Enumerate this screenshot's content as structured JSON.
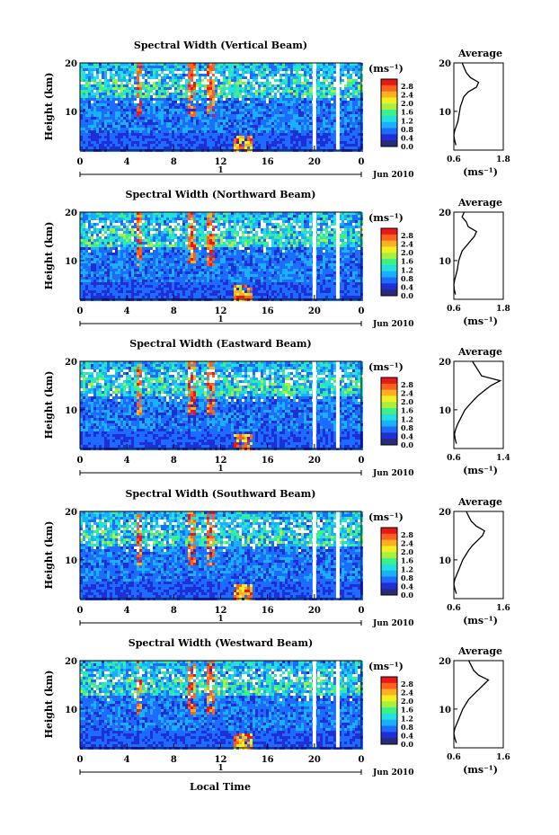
{
  "figure": {
    "xaxis_title": "Local Time",
    "date_label": "Jun 2010",
    "day_label": "1",
    "ylabel": "Height (km)",
    "unit_label": "(ms⁻¹)",
    "average_title": "Average",
    "average_xlabel": "(ms⁻¹)",
    "x_ticks": [
      "0",
      "4",
      "8",
      "12",
      "16",
      "20",
      "0"
    ],
    "y_ticks": [
      "20",
      "10"
    ],
    "colorbar_ticks": [
      "2.8",
      "2.4",
      "2.0",
      "1.6",
      "1.2",
      "0.8",
      "0.4",
      "0.0"
    ],
    "colorbar_colors": [
      "#2a2a7a",
      "#1e2fd8",
      "#1e6bff",
      "#1ab0ff",
      "#22e0e0",
      "#3ef08a",
      "#a8f040",
      "#f0f020",
      "#ffb020",
      "#ff6020",
      "#e81818"
    ]
  },
  "chart_data": [
    {
      "type": "heatmap",
      "title": "Spectral Width (Vertical Beam)",
      "xlabel": "Local Time",
      "ylabel": "Height (km)",
      "xlim": [
        0,
        24
      ],
      "ylim": [
        2,
        20
      ],
      "clim": [
        0.0,
        2.8
      ],
      "colorbar_label": "(ms⁻¹)",
      "data_gaps_hours": [
        20,
        22
      ],
      "average_profile": {
        "title": "Average",
        "xlim": [
          0.6,
          1.8
        ],
        "xticks": [
          "0.6",
          "1.8"
        ],
        "xlabel": "(ms⁻¹)",
        "heights": [
          3,
          4,
          5,
          6,
          7,
          8,
          9,
          10,
          11,
          12,
          13,
          14,
          15,
          16,
          17,
          18,
          19,
          20
        ],
        "values": [
          0.65,
          0.62,
          0.6,
          0.62,
          0.66,
          0.7,
          0.72,
          0.74,
          0.76,
          0.8,
          0.84,
          0.95,
          1.15,
          1.2,
          1.0,
          0.9,
          0.85,
          0.8
        ]
      }
    },
    {
      "type": "heatmap",
      "title": "Spectral Width (Northward Beam)",
      "xlabel": "Local Time",
      "ylabel": "Height (km)",
      "xlim": [
        0,
        24
      ],
      "ylim": [
        2,
        20
      ],
      "clim": [
        0.0,
        2.8
      ],
      "colorbar_label": "(ms⁻¹)",
      "data_gaps_hours": [
        20,
        22
      ],
      "average_profile": {
        "title": "Average",
        "xlim": [
          0.6,
          1.8
        ],
        "xticks": [
          "0.6",
          "1.8"
        ],
        "xlabel": "(ms⁻¹)",
        "heights": [
          3,
          4,
          5,
          6,
          7,
          8,
          9,
          10,
          11,
          12,
          13,
          14,
          15,
          16,
          17,
          18,
          19,
          20
        ],
        "values": [
          0.64,
          0.61,
          0.6,
          0.62,
          0.65,
          0.68,
          0.7,
          0.72,
          0.76,
          0.8,
          0.9,
          1.0,
          1.1,
          1.15,
          0.95,
          0.9,
          0.8,
          0.85
        ]
      }
    },
    {
      "type": "heatmap",
      "title": "Spectral Width (Eastward Beam)",
      "xlabel": "Local Time",
      "ylabel": "Height (km)",
      "xlim": [
        0,
        24
      ],
      "ylim": [
        2,
        20
      ],
      "clim": [
        0.0,
        2.8
      ],
      "colorbar_label": "(ms⁻¹)",
      "data_gaps_hours": [
        20,
        22
      ],
      "average_profile": {
        "title": "Average",
        "xlim": [
          0.6,
          1.4
        ],
        "xticks": [
          "0.6",
          "1.4"
        ],
        "xlabel": "(ms⁻¹)",
        "heights": [
          3,
          4,
          5,
          6,
          7,
          8,
          9,
          10,
          11,
          12,
          13,
          14,
          15,
          16,
          17,
          18,
          19,
          20
        ],
        "values": [
          0.64,
          0.62,
          0.61,
          0.63,
          0.66,
          0.7,
          0.74,
          0.78,
          0.85,
          0.92,
          1.0,
          1.1,
          1.2,
          1.35,
          1.05,
          1.0,
          0.95,
          0.9
        ]
      }
    },
    {
      "type": "heatmap",
      "title": "Spectral Width (Southward Beam)",
      "xlabel": "Local Time",
      "ylabel": "Height (km)",
      "xlim": [
        0,
        24
      ],
      "ylim": [
        2,
        20
      ],
      "clim": [
        0.0,
        2.8
      ],
      "colorbar_label": "(ms⁻¹)",
      "data_gaps_hours": [
        20,
        22
      ],
      "average_profile": {
        "title": "Average",
        "xlim": [
          0.6,
          1.6
        ],
        "xticks": [
          "0.6",
          "1.6"
        ],
        "xlabel": "(ms⁻¹)",
        "heights": [
          3,
          4,
          5,
          6,
          7,
          8,
          9,
          10,
          11,
          12,
          13,
          14,
          15,
          16,
          17,
          18,
          19,
          20
        ],
        "values": [
          0.65,
          0.62,
          0.6,
          0.62,
          0.66,
          0.7,
          0.74,
          0.78,
          0.84,
          0.9,
          0.98,
          1.08,
          1.18,
          1.22,
          1.05,
          0.95,
          0.9,
          0.85
        ]
      }
    },
    {
      "type": "heatmap",
      "title": "Spectral Width (Westward Beam)",
      "xlabel": "Local Time",
      "ylabel": "Height (km)",
      "xlim": [
        0,
        24
      ],
      "ylim": [
        2,
        20
      ],
      "clim": [
        0.0,
        2.8
      ],
      "colorbar_label": "(ms⁻¹)",
      "data_gaps_hours": [
        20,
        22
      ],
      "average_profile": {
        "title": "Average",
        "xlim": [
          0.6,
          1.6
        ],
        "xticks": [
          "0.6",
          "1.6"
        ],
        "xlabel": "(ms⁻¹)",
        "heights": [
          3,
          4,
          5,
          6,
          7,
          8,
          9,
          10,
          11,
          12,
          13,
          14,
          15,
          16,
          17,
          18,
          19,
          20
        ],
        "values": [
          0.65,
          0.62,
          0.6,
          0.62,
          0.66,
          0.7,
          0.74,
          0.78,
          0.84,
          0.9,
          1.0,
          1.1,
          1.2,
          1.3,
          1.1,
          1.0,
          0.95,
          0.9
        ]
      }
    }
  ]
}
